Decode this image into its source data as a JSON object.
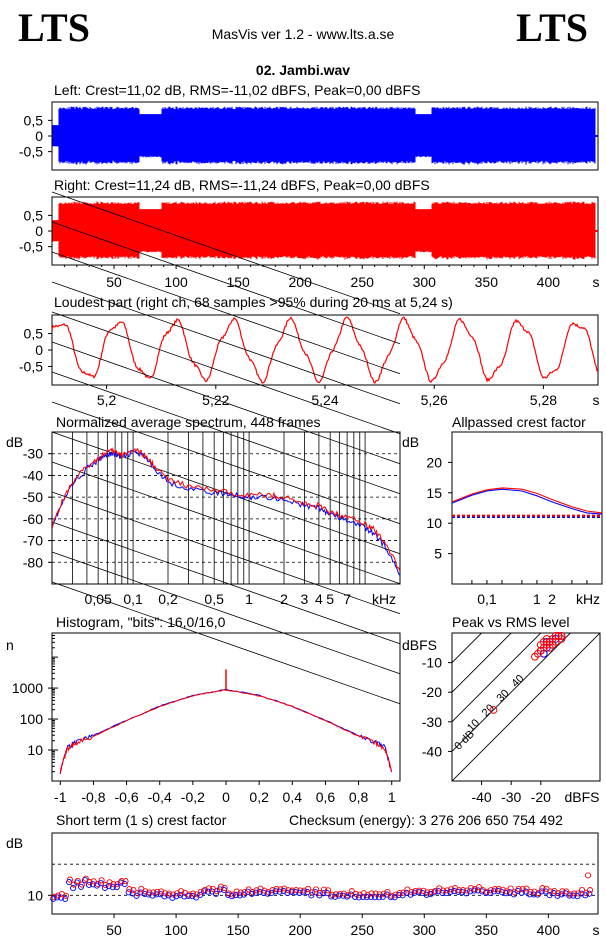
{
  "header": {
    "logo_left": "LTS",
    "logo_right": "LTS",
    "app_title": "MasVis ver 1.2 - www.lts.a.se",
    "file_name": "02. Jambi.wav"
  },
  "colors": {
    "left": "#0000ff",
    "right": "#ff0000",
    "grid": "#000000",
    "background": "#ffffff"
  },
  "chart_data": [
    {
      "id": "left-waveform",
      "type": "area",
      "title": "Left: Crest=11,02 dB, RMS=-11,02 dBFS, Peak=0,00 dBFS",
      "crest_db": 11.02,
      "rms_dbfs": -11.02,
      "peak_dbfs": 0.0,
      "yticks": [
        "0,5",
        "0",
        "-0,5"
      ],
      "ylim": [
        -1,
        1
      ],
      "duration_s": 438,
      "color": "#0000ff"
    },
    {
      "id": "right-waveform",
      "type": "area",
      "title": "Right: Crest=11,24 dB, RMS=-11,24 dBFS, Peak=0,00 dBFS",
      "crest_db": 11.24,
      "rms_dbfs": -11.24,
      "peak_dbfs": 0.0,
      "yticks": [
        "0,5",
        "0",
        "-0,5"
      ],
      "ylim": [
        -1,
        1
      ],
      "xticks": [
        "50",
        "100",
        "150",
        "200",
        "250",
        "300",
        "350",
        "400"
      ],
      "xunit": "s",
      "xlim": [
        0,
        440
      ],
      "duration_s": 438,
      "color": "#ff0000"
    },
    {
      "id": "loudest-part",
      "type": "line",
      "title": "Loudest part (right ch, 68 samples >95% during 20 ms at 5,24 s)",
      "yticks": [
        "0,5",
        "0",
        "-0,5"
      ],
      "ylim": [
        -1,
        1
      ],
      "xticks": [
        "5,2",
        "5,22",
        "5,24",
        "5,26",
        "5,28"
      ],
      "xunit": "s",
      "xlim": [
        5.19,
        5.29
      ],
      "cycles": 9.5,
      "color": "#ff0000"
    },
    {
      "id": "avg-spectrum",
      "type": "line",
      "title": "Normalized average spectrum, 448 frames",
      "ylabel": "dB",
      "yticks": [
        "-30",
        "-40",
        "-50",
        "-60",
        "-70",
        "-80"
      ],
      "ylim": [
        -90,
        -20
      ],
      "xticks": [
        "0,05",
        "0,1",
        "0,2",
        "0,5",
        "1",
        "2",
        "3",
        "4",
        "5",
        "7"
      ],
      "xunit": "kHz",
      "xlim": [
        0.02,
        20
      ],
      "series": [
        {
          "color": "#0000ff",
          "x": [
            0.02,
            0.025,
            0.03,
            0.04,
            0.05,
            0.06,
            0.07,
            0.08,
            0.1,
            0.12,
            0.15,
            0.2,
            0.3,
            0.5,
            0.7,
            1,
            1.5,
            2,
            3,
            4,
            5,
            7,
            10,
            12,
            15,
            20
          ],
          "y": [
            -63,
            -52,
            -44,
            -37,
            -33,
            -30,
            -30,
            -32,
            -29,
            -31,
            -36,
            -43,
            -46,
            -48,
            -49,
            -50,
            -50,
            -51,
            -54,
            -55,
            -58,
            -61,
            -64,
            -67,
            -73,
            -86
          ]
        },
        {
          "color": "#ff0000",
          "x": [
            0.02,
            0.025,
            0.03,
            0.04,
            0.05,
            0.06,
            0.07,
            0.08,
            0.1,
            0.12,
            0.15,
            0.2,
            0.3,
            0.5,
            0.7,
            1,
            1.5,
            2,
            3,
            4,
            5,
            7,
            10,
            12,
            15,
            20
          ],
          "y": [
            -63,
            -51,
            -43,
            -36,
            -32,
            -29,
            -29,
            -31,
            -28,
            -30,
            -35,
            -42,
            -45,
            -47,
            -48,
            -49,
            -49,
            -50,
            -53,
            -54,
            -57,
            -59,
            -62,
            -65,
            -71,
            -84
          ]
        }
      ]
    },
    {
      "id": "allpassed-crest",
      "type": "line",
      "title": "Allpassed crest factor",
      "ylabel": "dB",
      "yticks": [
        "20",
        "15",
        "10",
        "5"
      ],
      "ylim": [
        0,
        25
      ],
      "xticks": [
        "0,1",
        "1",
        "2"
      ],
      "xunit": "kHz",
      "xlim": [
        0.02,
        20
      ],
      "series": [
        {
          "color": "#0000ff",
          "x": [
            0.02,
            0.05,
            0.1,
            0.2,
            0.5,
            1,
            2,
            5,
            10,
            20
          ],
          "y": [
            13.3,
            14.6,
            15.3,
            15.6,
            15.3,
            14.5,
            13.5,
            12.4,
            11.7,
            11.5
          ]
        },
        {
          "color": "#ff0000",
          "x": [
            0.02,
            0.05,
            0.1,
            0.2,
            0.5,
            1,
            2,
            5,
            10,
            20
          ],
          "y": [
            13.5,
            14.8,
            15.5,
            15.8,
            15.6,
            14.9,
            13.9,
            12.7,
            12.0,
            11.7
          ]
        }
      ],
      "reference_lines": [
        {
          "color": "#0000ff",
          "y": 11.02
        },
        {
          "color": "#ff0000",
          "y": 11.24
        }
      ]
    },
    {
      "id": "histogram",
      "type": "line",
      "title": "Histogram, \"bits\": 16,0/16,0",
      "ylabel": "n",
      "yscale": "log",
      "yticks": [
        "1000",
        "100",
        "10"
      ],
      "ylim": [
        1,
        60000
      ],
      "xticks": [
        "-1",
        "-0,8",
        "-0,6",
        "-0,4",
        "-0,2",
        "0",
        "0,2",
        "0,4",
        "0,6",
        "0,8",
        "1"
      ],
      "xlim": [
        -1.05,
        1.05
      ],
      "series": [
        {
          "color": "#0000ff",
          "x": [
            -1,
            -0.96,
            -0.9,
            -0.8,
            -0.6,
            -0.4,
            -0.2,
            0,
            0.2,
            0.4,
            0.6,
            0.8,
            0.9,
            0.96,
            1
          ],
          "y": [
            2,
            12,
            18,
            30,
            90,
            260,
            580,
            900,
            580,
            260,
            90,
            30,
            18,
            12,
            2
          ]
        },
        {
          "color": "#ff0000",
          "x": [
            -1,
            -0.96,
            -0.9,
            -0.8,
            -0.6,
            -0.4,
            -0.2,
            0,
            0.2,
            0.4,
            0.6,
            0.8,
            0.9,
            0.96,
            1
          ],
          "y": [
            2,
            11,
            17,
            28,
            88,
            255,
            570,
            880,
            570,
            255,
            88,
            28,
            17,
            11,
            2
          ]
        }
      ],
      "spike": {
        "x": 0,
        "y": 4000
      }
    },
    {
      "id": "peak-vs-rms",
      "type": "scatter",
      "title": "Peak vs RMS level",
      "ylabel": "dBFS",
      "yticks": [
        "-10",
        "-20",
        "-30",
        "-40"
      ],
      "ylim": [
        -50,
        0
      ],
      "xlabel": "dBFS",
      "xticks": [
        "-40",
        "-30",
        "-20"
      ],
      "xlim": [
        -50,
        0
      ],
      "diagonal_labels": [
        "40",
        "30",
        "20",
        "10",
        "0 dB"
      ],
      "series": [
        {
          "color": "#0000ff",
          "points": [
            [
              -20,
              -6
            ],
            [
              -18,
              -5
            ],
            [
              -17,
              -3
            ],
            [
              -15,
              -2
            ],
            [
              -14,
              -1
            ],
            [
              -19,
              -7
            ],
            [
              -16,
              -4
            ],
            [
              -13,
              -1
            ],
            [
              -18,
              -3
            ]
          ]
        },
        {
          "color": "#ff0000",
          "points": [
            [
              -21,
              -7
            ],
            [
              -20,
              -6
            ],
            [
              -19,
              -5
            ],
            [
              -18,
              -4
            ],
            [
              -17,
              -3
            ],
            [
              -16,
              -2
            ],
            [
              -15,
              -1
            ],
            [
              -14,
              -1
            ],
            [
              -13,
              -1
            ],
            [
              -19,
              -3
            ],
            [
              -17,
              -5
            ],
            [
              -16,
              -4
            ],
            [
              -22,
              -8
            ],
            [
              -15,
              -3
            ],
            [
              -20,
              -4
            ],
            [
              -18,
              -2
            ],
            [
              -13,
              -2
            ],
            [
              -36,
              -26
            ]
          ]
        }
      ]
    },
    {
      "id": "short-term-crest",
      "type": "scatter",
      "title": "Short term (1 s) crest factor",
      "checksum_label": "Checksum (energy):  3 276 206 650 754 492",
      "ylabel": "dB",
      "yticks": [
        "10"
      ],
      "ylim": [
        7,
        20
      ],
      "xticks": [
        "50",
        "100",
        "150",
        "200",
        "250",
        "300",
        "350",
        "400"
      ],
      "xunit": "s",
      "xlim": [
        0,
        440
      ],
      "reference_dashed": [
        10,
        15
      ]
    }
  ]
}
